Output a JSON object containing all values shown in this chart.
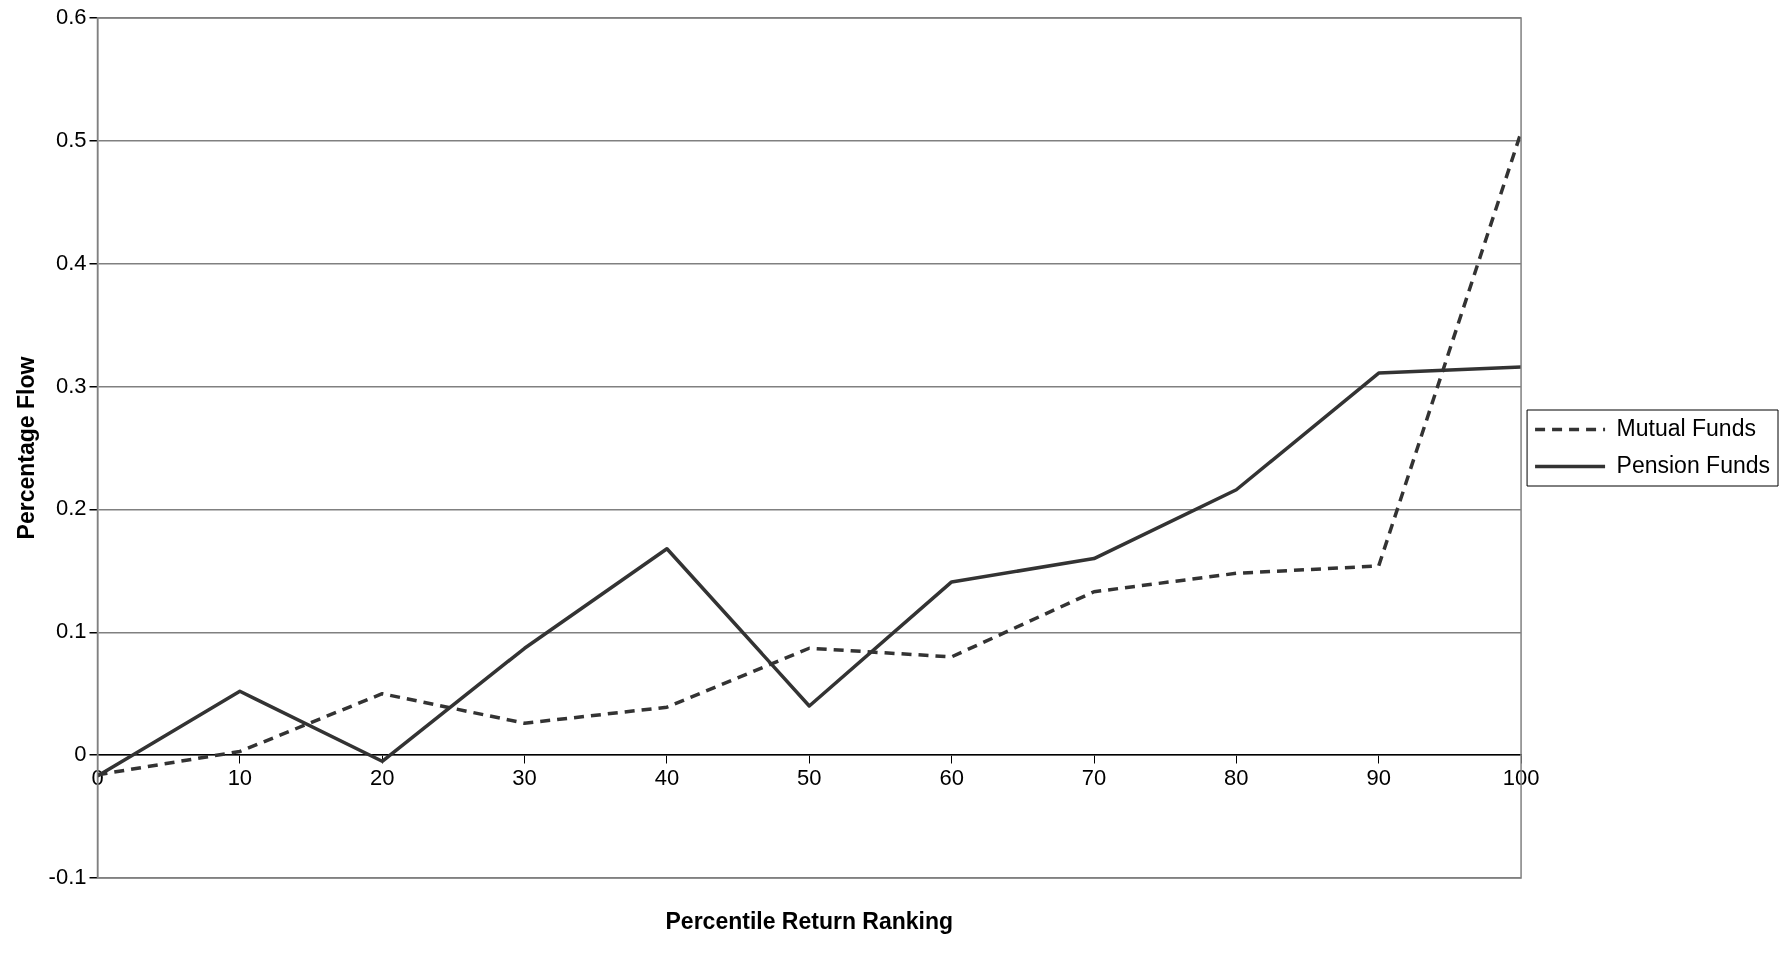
{
  "chart_data": {
    "type": "line",
    "xlabel": "Percentile Return Ranking",
    "ylabel": "Percentage Flow",
    "x": [
      0,
      10,
      20,
      30,
      40,
      50,
      60,
      70,
      80,
      90,
      100
    ],
    "series": [
      {
        "name": "Mutual Funds",
        "color": "#333333",
        "line_style": "dashed",
        "values": [
          -0.016,
          0.003,
          0.05,
          0.026,
          0.039,
          0.087,
          0.08,
          0.133,
          0.148,
          0.154,
          0.507
        ]
      },
      {
        "name": "Pension Funds",
        "color": "#333333",
        "line_style": "solid",
        "values": [
          -0.017,
          0.052,
          -0.005,
          0.087,
          0.168,
          0.04,
          0.141,
          0.16,
          0.216,
          0.311,
          0.316
        ]
      }
    ],
    "xlim": [
      0,
      100
    ],
    "xticks": [
      0,
      10,
      20,
      30,
      40,
      50,
      60,
      70,
      80,
      90,
      100
    ],
    "ylim": [
      -0.1,
      0.6
    ],
    "yticks": [
      -0.1,
      0,
      0.1,
      0.2,
      0.3,
      0.4,
      0.5,
      0.6
    ],
    "grid": "y",
    "legend": "right",
    "marker": "none"
  }
}
